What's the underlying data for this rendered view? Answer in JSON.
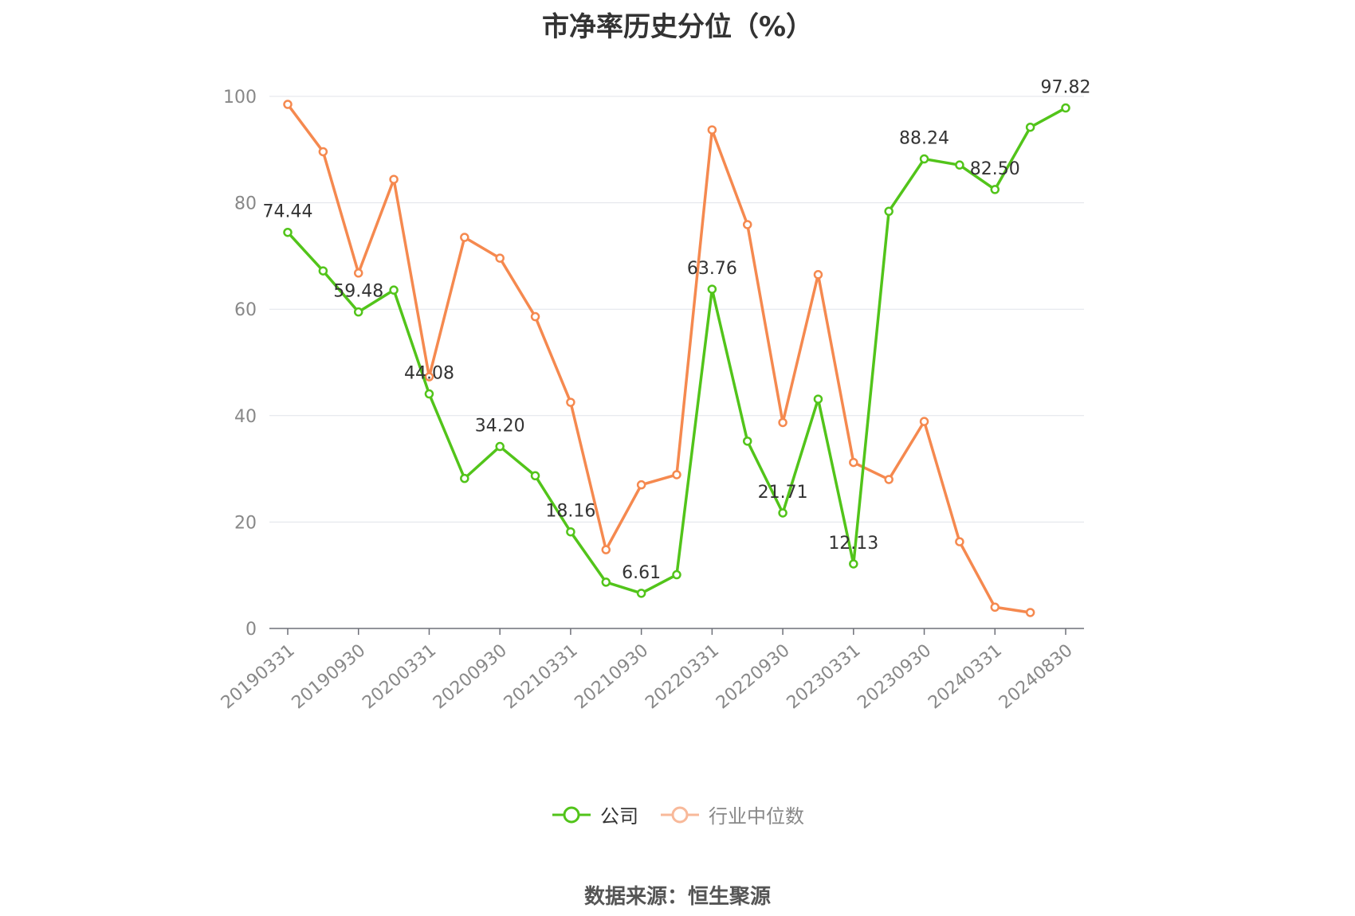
{
  "chart_data": {
    "type": "line",
    "title": "市净率历史分位（%）",
    "source": "数据来源：恒生聚源",
    "ylim": [
      0,
      100
    ],
    "yticks": [
      0,
      20,
      40,
      60,
      80,
      100
    ],
    "grid": true,
    "legend_position": "bottom",
    "x": [
      "20190331",
      "20190630",
      "20190930",
      "20191231",
      "20200331",
      "20200630",
      "20200930",
      "20201231",
      "20210331",
      "20210630",
      "20210930",
      "20211231",
      "20220331",
      "20220630",
      "20220930",
      "20221231",
      "20230331",
      "20230630",
      "20230930",
      "20231231",
      "20240331",
      "20240630",
      "20240830"
    ],
    "xtick_labels": [
      "20190331",
      "20190930",
      "20200331",
      "20200930",
      "20210331",
      "20210930",
      "20220331",
      "20220930",
      "20230331",
      "20230930",
      "20240331",
      "20240830"
    ],
    "series": [
      {
        "name": "公司",
        "color": "#52c41a",
        "values": [
          74.44,
          67.2,
          59.48,
          63.6,
          44.08,
          28.2,
          34.2,
          28.7,
          18.16,
          8.7,
          6.61,
          10.1,
          63.76,
          35.2,
          21.71,
          43.1,
          12.13,
          78.4,
          88.24,
          87.1,
          82.5,
          94.2,
          97.82
        ],
        "labels": [
          "74.44",
          null,
          "59.48",
          null,
          "44.08",
          null,
          "34.20",
          null,
          "18.16",
          null,
          "6.61",
          null,
          "63.76",
          null,
          "21.71",
          null,
          "12.13",
          null,
          "88.24",
          null,
          "82.50",
          null,
          "97.82"
        ]
      },
      {
        "name": "行业中位数",
        "color": "#f5894f",
        "values": [
          98.5,
          89.6,
          66.8,
          84.4,
          47.3,
          73.5,
          69.6,
          58.6,
          42.5,
          14.8,
          27.0,
          28.9,
          93.7,
          75.9,
          38.7,
          66.5,
          31.2,
          28.0,
          38.9,
          16.3,
          4.0,
          3.0,
          null
        ]
      }
    ]
  }
}
